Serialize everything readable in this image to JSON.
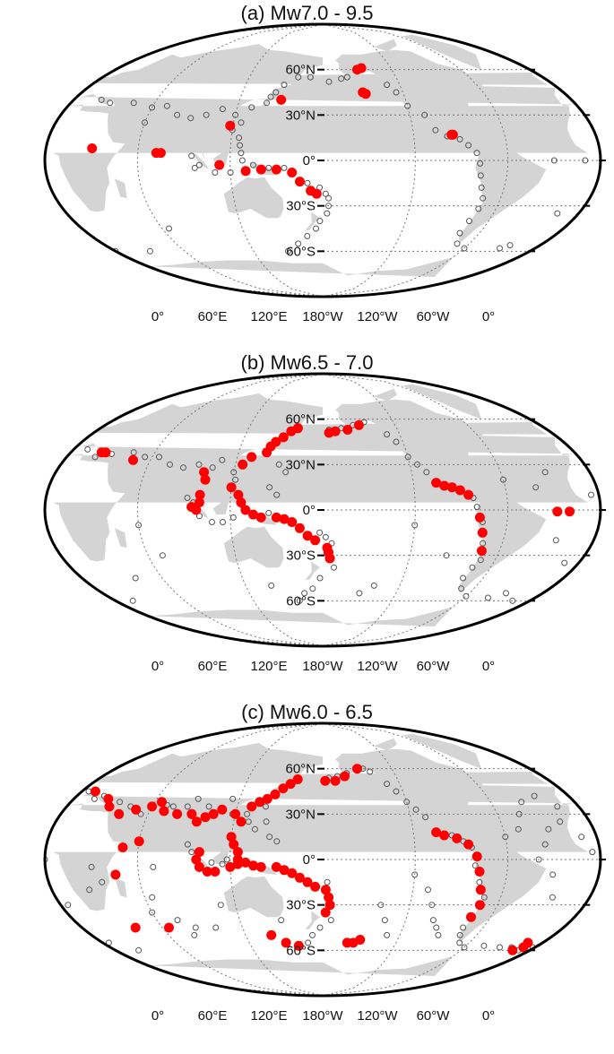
{
  "panels": [
    {
      "id": "a",
      "title": "(a) Mw7.0 - 9.5",
      "red": [
        [
          30,
          8
        ],
        [
          72,
          5
        ],
        [
          75,
          5
        ],
        [
          118,
          23
        ],
        [
          150,
          40
        ],
        [
          113,
          -3
        ],
        [
          130,
          -7
        ],
        [
          140,
          -6
        ],
        [
          150,
          -6
        ],
        [
          160,
          -8
        ],
        [
          165,
          -14
        ],
        [
          172,
          -20
        ],
        [
          176,
          -22
        ],
        [
          -150,
          60
        ],
        [
          -146,
          61
        ],
        [
          -150,
          45
        ],
        [
          -148,
          44
        ],
        [
          -95,
          17
        ],
        [
          -94,
          17
        ]
      ],
      "gray": [
        [
          45,
          38
        ],
        [
          60,
          35
        ],
        [
          70,
          36
        ],
        [
          80,
          30
        ],
        [
          90,
          28
        ],
        [
          100,
          30
        ],
        [
          110,
          34
        ],
        [
          120,
          30
        ],
        [
          125,
          25
        ],
        [
          130,
          35
        ],
        [
          140,
          38
        ],
        [
          142,
          42
        ],
        [
          145,
          45
        ],
        [
          150,
          50
        ],
        [
          160,
          55
        ],
        [
          170,
          55
        ],
        [
          -175,
          52
        ],
        [
          -165,
          54
        ],
        [
          -160,
          55
        ],
        [
          -130,
          50
        ],
        [
          -125,
          45
        ],
        [
          -120,
          36
        ],
        [
          -110,
          30
        ],
        [
          -105,
          20
        ],
        [
          -98,
          16
        ],
        [
          -90,
          14
        ],
        [
          -85,
          10
        ],
        [
          -80,
          5
        ],
        [
          -78,
          -2
        ],
        [
          -77,
          -10
        ],
        [
          -75,
          -18
        ],
        [
          -72,
          -25
        ],
        [
          -72,
          -32
        ],
        [
          -74,
          -40
        ],
        [
          -75,
          -48
        ],
        [
          -70,
          -55
        ],
        [
          -60,
          -58
        ],
        [
          -30,
          -58
        ],
        [
          -25,
          -56
        ],
        [
          125,
          15
        ],
        [
          126,
          10
        ],
        [
          127,
          5
        ],
        [
          128,
          0
        ],
        [
          120,
          -8
        ],
        [
          110,
          -8
        ],
        [
          100,
          -3
        ],
        [
          95,
          3
        ],
        [
          97,
          -5
        ],
        [
          135,
          -3
        ],
        [
          145,
          -5
        ],
        [
          155,
          -5
        ],
        [
          170,
          -15
        ],
        [
          178,
          -18
        ],
        [
          -178,
          -22
        ],
        [
          -176,
          -25
        ],
        [
          -176,
          -30
        ],
        [
          -177,
          -35
        ],
        [
          178,
          -40
        ],
        [
          175,
          -45
        ],
        [
          168,
          -50
        ],
        [
          160,
          -55
        ],
        [
          -10,
          0
        ],
        [
          -30,
          0
        ],
        [
          65,
          -45
        ],
        [
          120,
          20
        ],
        [
          60,
          25
        ],
        [
          28,
          38
        ],
        [
          20,
          40
        ],
        [
          0,
          -60
        ],
        [
          30,
          -60
        ],
        [
          150,
          -60
        ],
        [
          -15,
          -35
        ]
      ]
    },
    {
      "id": "b",
      "title": "(b) Mw6.5 - 7.0",
      "red": [
        [
          22,
          38
        ],
        [
          25,
          38
        ],
        [
          48,
          33
        ],
        [
          100,
          25
        ],
        [
          102,
          20
        ],
        [
          100,
          10
        ],
        [
          100,
          5
        ],
        [
          98,
          0
        ],
        [
          95,
          2
        ],
        [
          120,
          15
        ],
        [
          125,
          10
        ],
        [
          127,
          5
        ],
        [
          130,
          0
        ],
        [
          135,
          -3
        ],
        [
          140,
          -5
        ],
        [
          150,
          -5
        ],
        [
          155,
          -6
        ],
        [
          160,
          -8
        ],
        [
          165,
          -12
        ],
        [
          170,
          -17
        ],
        [
          175,
          -20
        ],
        [
          -177,
          -25
        ],
        [
          -176,
          -28
        ],
        [
          -175,
          -32
        ],
        [
          125,
          30
        ],
        [
          130,
          35
        ],
        [
          140,
          38
        ],
        [
          142,
          42
        ],
        [
          145,
          45
        ],
        [
          150,
          48
        ],
        [
          155,
          52
        ],
        [
          160,
          54
        ],
        [
          -175,
          51
        ],
        [
          -170,
          52
        ],
        [
          -160,
          53
        ],
        [
          -150,
          56
        ],
        [
          -105,
          18
        ],
        [
          -100,
          16
        ],
        [
          -95,
          15
        ],
        [
          -90,
          13
        ],
        [
          -85,
          10
        ],
        [
          -78,
          -5
        ],
        [
          -75,
          -15
        ],
        [
          -72,
          -27
        ],
        [
          -28,
          -1
        ],
        [
          -20,
          -1
        ]
      ],
      "gray": [
        [
          10,
          40
        ],
        [
          20,
          35
        ],
        [
          30,
          37
        ],
        [
          45,
          38
        ],
        [
          55,
          35
        ],
        [
          65,
          35
        ],
        [
          75,
          30
        ],
        [
          85,
          28
        ],
        [
          95,
          30
        ],
        [
          105,
          28
        ],
        [
          110,
          33
        ],
        [
          120,
          25
        ],
        [
          122,
          20
        ],
        [
          126,
          8
        ],
        [
          128,
          3
        ],
        [
          122,
          -5
        ],
        [
          115,
          -8
        ],
        [
          108,
          -8
        ],
        [
          100,
          -4
        ],
        [
          92,
          8
        ],
        [
          96,
          5
        ],
        [
          145,
          15
        ],
        [
          150,
          10
        ],
        [
          145,
          -2
        ],
        [
          178,
          -15
        ],
        [
          -178,
          -18
        ],
        [
          -174,
          -22
        ],
        [
          -172,
          -38
        ],
        [
          178,
          -45
        ],
        [
          172,
          -52
        ],
        [
          165,
          -55
        ],
        [
          160,
          -60
        ],
        [
          -175,
          53
        ],
        [
          -165,
          54
        ],
        [
          -155,
          56
        ],
        [
          -145,
          58
        ],
        [
          -130,
          50
        ],
        [
          -125,
          45
        ],
        [
          -120,
          35
        ],
        [
          -115,
          30
        ],
        [
          -110,
          25
        ],
        [
          -82,
          8
        ],
        [
          -80,
          2
        ],
        [
          -76,
          -8
        ],
        [
          -73,
          -22
        ],
        [
          -70,
          -33
        ],
        [
          -73,
          -38
        ],
        [
          -75,
          -45
        ],
        [
          -70,
          -52
        ],
        [
          -60,
          -57
        ],
        [
          -40,
          -58
        ],
        [
          -30,
          -55
        ],
        [
          -15,
          -60
        ],
        [
          -10,
          -35
        ],
        [
          -25,
          -20
        ],
        [
          -5,
          10
        ],
        [
          60,
          -10
        ],
        [
          70,
          -30
        ],
        [
          40,
          -45
        ],
        [
          140,
          -50
        ],
        [
          -150,
          -55
        ],
        [
          -140,
          -50
        ],
        [
          -60,
          20
        ],
        [
          -40,
          15
        ],
        [
          -30,
          25
        ],
        [
          -120,
          -10
        ],
        [
          150,
          30
        ],
        [
          155,
          25
        ],
        [
          15,
          -60
        ],
        [
          -95,
          -30
        ]
      ]
    },
    {
      "id": "c",
      "title": "(c) Mw6.0 - 6.5",
      "red": [
        [
          10,
          45
        ],
        [
          25,
          40
        ],
        [
          30,
          35
        ],
        [
          40,
          30
        ],
        [
          50,
          33
        ],
        [
          60,
          35
        ],
        [
          65,
          38
        ],
        [
          70,
          32
        ],
        [
          80,
          30
        ],
        [
          90,
          30
        ],
        [
          95,
          25
        ],
        [
          100,
          28
        ],
        [
          105,
          30
        ],
        [
          110,
          33
        ],
        [
          120,
          30
        ],
        [
          125,
          25
        ],
        [
          130,
          35
        ],
        [
          135,
          38
        ],
        [
          140,
          40
        ],
        [
          145,
          43
        ],
        [
          150,
          47
        ],
        [
          155,
          50
        ],
        [
          160,
          53
        ],
        [
          -178,
          52
        ],
        [
          -170,
          52
        ],
        [
          -162,
          55
        ],
        [
          -150,
          60
        ],
        [
          50,
          8
        ],
        [
          45,
          -10
        ],
        [
          60,
          12
        ],
        [
          100,
          5
        ],
        [
          98,
          0
        ],
        [
          100,
          -5
        ],
        [
          105,
          -8
        ],
        [
          110,
          -8
        ],
        [
          120,
          -5
        ],
        [
          125,
          -3
        ],
        [
          130,
          -2
        ],
        [
          135,
          -4
        ],
        [
          140,
          -5
        ],
        [
          150,
          -5
        ],
        [
          155,
          -7
        ],
        [
          160,
          -9
        ],
        [
          165,
          -12
        ],
        [
          170,
          -15
        ],
        [
          175,
          -18
        ],
        [
          -178,
          -20
        ],
        [
          -176,
          -25
        ],
        [
          -175,
          -30
        ],
        [
          -178,
          -35
        ],
        [
          120,
          15
        ],
        [
          122,
          10
        ],
        [
          125,
          5
        ],
        [
          125,
          0
        ],
        [
          40,
          -45
        ],
        [
          65,
          -45
        ],
        [
          140,
          -50
        ],
        [
          150,
          -55
        ],
        [
          160,
          -57
        ],
        [
          -160,
          -55
        ],
        [
          -155,
          -55
        ],
        [
          -150,
          -53
        ],
        [
          -105,
          18
        ],
        [
          -100,
          16
        ],
        [
          -92,
          14
        ],
        [
          -85,
          10
        ],
        [
          -80,
          2
        ],
        [
          -78,
          -8
        ],
        [
          -75,
          -20
        ],
        [
          -72,
          -30
        ],
        [
          -74,
          -38
        ],
        [
          -12,
          -55
        ],
        [
          -10,
          -58
        ],
        [
          -15,
          -60
        ]
      ],
      "gray": [
        [
          5,
          45
        ],
        [
          15,
          40
        ],
        [
          20,
          42
        ],
        [
          35,
          38
        ],
        [
          45,
          35
        ],
        [
          55,
          30
        ],
        [
          70,
          36
        ],
        [
          75,
          35
        ],
        [
          85,
          35
        ],
        [
          90,
          40
        ],
        [
          100,
          35
        ],
        [
          115,
          40
        ],
        [
          118,
          30
        ],
        [
          128,
          30
        ],
        [
          130,
          25
        ],
        [
          135,
          20
        ],
        [
          140,
          35
        ],
        [
          142,
          25
        ],
        [
          145,
          15
        ],
        [
          150,
          12
        ],
        [
          92,
          10
        ],
        [
          95,
          5
        ],
        [
          108,
          -2
        ],
        [
          115,
          -3
        ],
        [
          118,
          0
        ],
        [
          -177,
          -15
        ],
        [
          -174,
          -40
        ],
        [
          178,
          -45
        ],
        [
          172,
          -50
        ],
        [
          168,
          -55
        ],
        [
          -175,
          54
        ],
        [
          -168,
          55
        ],
        [
          -160,
          57
        ],
        [
          -145,
          60
        ],
        [
          -140,
          58
        ],
        [
          -130,
          50
        ],
        [
          -125,
          45
        ],
        [
          -120,
          38
        ],
        [
          -115,
          33
        ],
        [
          -110,
          28
        ],
        [
          -95,
          16
        ],
        [
          -88,
          12
        ],
        [
          -83,
          8
        ],
        [
          -81,
          -4
        ],
        [
          -77,
          -15
        ],
        [
          -71,
          -25
        ],
        [
          -75,
          -45
        ],
        [
          -73,
          -50
        ],
        [
          -68,
          -55
        ],
        [
          -60,
          -58
        ],
        [
          -45,
          -57
        ],
        [
          -30,
          -58
        ],
        [
          -20,
          -58
        ],
        [
          -25,
          -25
        ],
        [
          -30,
          -10
        ],
        [
          -40,
          0
        ],
        [
          -35,
          10
        ],
        [
          -30,
          20
        ],
        [
          -20,
          25
        ],
        [
          -10,
          15
        ],
        [
          -5,
          5
        ],
        [
          0,
          0
        ],
        [
          5,
          -30
        ],
        [
          30,
          -5
        ],
        [
          25,
          -20
        ],
        [
          35,
          -15
        ],
        [
          70,
          -5
        ],
        [
          65,
          -25
        ],
        [
          75,
          -40
        ],
        [
          80,
          -50
        ],
        [
          110,
          -30
        ],
        [
          150,
          -40
        ],
        [
          -140,
          -30
        ],
        [
          -135,
          -40
        ],
        [
          -130,
          -50
        ],
        [
          -120,
          -10
        ],
        [
          -110,
          -20
        ],
        [
          -105,
          -30
        ],
        [
          -100,
          -40
        ],
        [
          -95,
          -45
        ],
        [
          -90,
          -50
        ],
        [
          -10,
          -60
        ],
        [
          20,
          -60
        ],
        [
          5,
          -55
        ],
        [
          -2,
          -58
        ],
        [
          -60,
          15
        ],
        [
          -50,
          20
        ],
        [
          -45,
          30
        ],
        [
          -38,
          38
        ],
        [
          -25,
          42
        ],
        [
          -15,
          35
        ],
        [
          60,
          -35
        ],
        [
          85,
          -45
        ],
        [
          100,
          -45
        ]
      ]
    }
  ],
  "lat_labels": [
    "60°N",
    "30°N",
    "0°",
    "30°S",
    "60°S"
  ],
  "lon_labels": [
    "0°",
    "60°E",
    "120°E",
    "180°W",
    "120°W",
    "60°W",
    "0°"
  ],
  "colors": {
    "land": "#d4d4d4",
    "red_marker": "#ff0000",
    "gray_marker": "#555555",
    "frame": "#000000",
    "grid": "#777777"
  }
}
